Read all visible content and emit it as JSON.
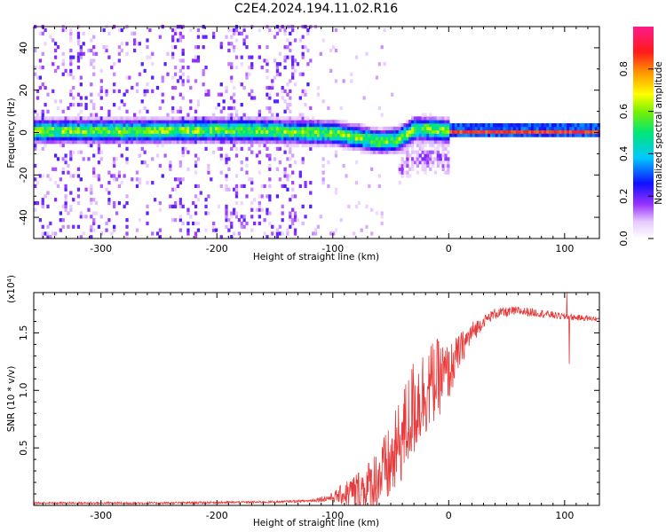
{
  "chart_data": [
    {
      "type": "heatmap",
      "title": "C2E4.2024.194.11.02.R16",
      "xlabel": "Height of straight line (km)",
      "ylabel": "Frequency (Hz)",
      "xlim": [
        -358,
        130
      ],
      "ylim": [
        -50,
        50
      ],
      "x_ticks": [
        "-300",
        "-200",
        "-100",
        "0",
        "100"
      ],
      "y_ticks": [
        "-40",
        "-20",
        "0",
        "20",
        "40"
      ],
      "colorbar": {
        "label": "Normalized spectral amplitude",
        "range": [
          0,
          1
        ],
        "ticks": [
          "0.0",
          "0.2",
          "0.4",
          "0.6",
          "0.8"
        ],
        "colormap": "white-purple-blue-cyan-green-yellow-orange-red-magenta"
      },
      "features": {
        "carrier_center_hz": [
          [
            -358,
            0
          ],
          [
            -250,
            0
          ],
          [
            -200,
            0.5
          ],
          [
            -150,
            0
          ],
          [
            -100,
            -1
          ],
          [
            -80,
            -3
          ],
          [
            -60,
            -5
          ],
          [
            -45,
            -4
          ],
          [
            -30,
            1
          ],
          [
            -20,
            1
          ],
          [
            0,
            0
          ],
          [
            130,
            0
          ]
        ],
        "spread_high_x_range": [
          -358,
          -120
        ],
        "strong_carrier_x_range": [
          0,
          130
        ],
        "peak_amplitude": 0.95
      },
      "grid": false
    },
    {
      "type": "line",
      "xlabel": "Height of straight line (km)",
      "ylabel": "SNR (10 * v/v)",
      "y_multiplier": "(x10⁴)",
      "xlim": [
        -358,
        130
      ],
      "ylim": [
        0,
        1.85
      ],
      "x_ticks": [
        "-300",
        "-200",
        "-100",
        "0",
        "100"
      ],
      "y_ticks": [
        "0.5",
        "1.0",
        "1.5"
      ],
      "color": "#e83a3a",
      "envelope": [
        [
          -358,
          0.02
        ],
        [
          -250,
          0.02
        ],
        [
          -150,
          0.03
        ],
        [
          -120,
          0.04
        ],
        [
          -100,
          0.07
        ],
        [
          -90,
          0.1
        ],
        [
          -70,
          0.15
        ],
        [
          -50,
          0.35
        ],
        [
          -40,
          0.6
        ],
        [
          -30,
          0.85
        ],
        [
          -20,
          1.0
        ],
        [
          -10,
          1.1
        ],
        [
          0,
          1.15
        ],
        [
          10,
          1.35
        ],
        [
          20,
          1.5
        ],
        [
          30,
          1.6
        ],
        [
          40,
          1.67
        ],
        [
          60,
          1.69
        ],
        [
          80,
          1.67
        ],
        [
          100,
          1.64
        ],
        [
          130,
          1.62
        ]
      ],
      "noise_amplitude": [
        [
          -358,
          0.01
        ],
        [
          -120,
          0.01
        ],
        [
          -100,
          0.04
        ],
        [
          -60,
          0.3
        ],
        [
          -30,
          0.45
        ],
        [
          -10,
          0.35
        ],
        [
          10,
          0.15
        ],
        [
          30,
          0.05
        ],
        [
          130,
          0.02
        ]
      ],
      "spikes": [
        [
          102,
          1.85
        ],
        [
          104,
          1.23
        ]
      ],
      "grid": false
    }
  ]
}
